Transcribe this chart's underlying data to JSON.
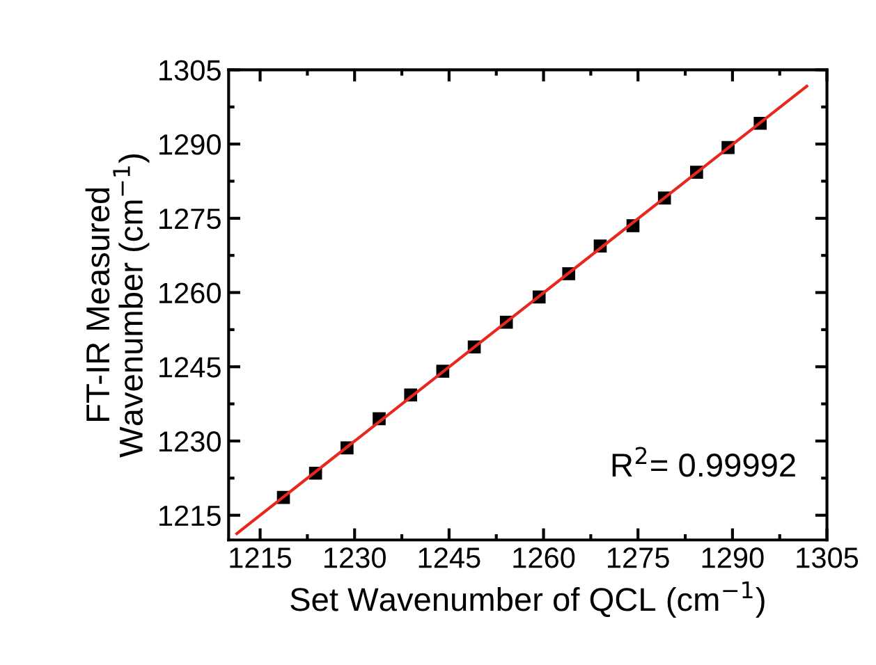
{
  "chart_data": {
    "type": "scatter",
    "xlabel": "Set Wavenumber of QCL (cm$^{−1}$)",
    "ylabel": "FT-IR Measured\nWavenumber (cm$^{−1}$)",
    "x": [
      1218.7,
      1223.8,
      1228.8,
      1233.9,
      1238.9,
      1244.0,
      1249.0,
      1254.1,
      1259.3,
      1264.0,
      1269.0,
      1274.2,
      1279.2,
      1284.3,
      1289.3,
      1294.4
    ],
    "series": [
      {
        "color": "#000000",
        "marker": "square",
        "values": [
          1218.6,
          1223.5,
          1228.6,
          1234.5,
          1239.3,
          1244.1,
          1249.0,
          1254.0,
          1259.1,
          1263.8,
          1269.4,
          1273.5,
          1279.1,
          1284.3,
          1289.3,
          1294.2
        ]
      },
      {
        "type": "line",
        "color": "#e8281e",
        "marker": "none",
        "line_style": "solid",
        "x": [
          1211.3,
          1301.8
        ],
        "values": [
          1211.3,
          1301.7
        ]
      }
    ],
    "xlim": [
      1210,
      1305
    ],
    "ylim": [
      1210,
      1305
    ],
    "xticks": [
      1215,
      1230,
      1245,
      1260,
      1275,
      1290,
      1305
    ],
    "yticks": [
      1215,
      1230,
      1245,
      1260,
      1275,
      1290,
      1305
    ],
    "annotations": [
      "R$^{2}$= 0.99992"
    ],
    "grid": false,
    "legend": false
  }
}
